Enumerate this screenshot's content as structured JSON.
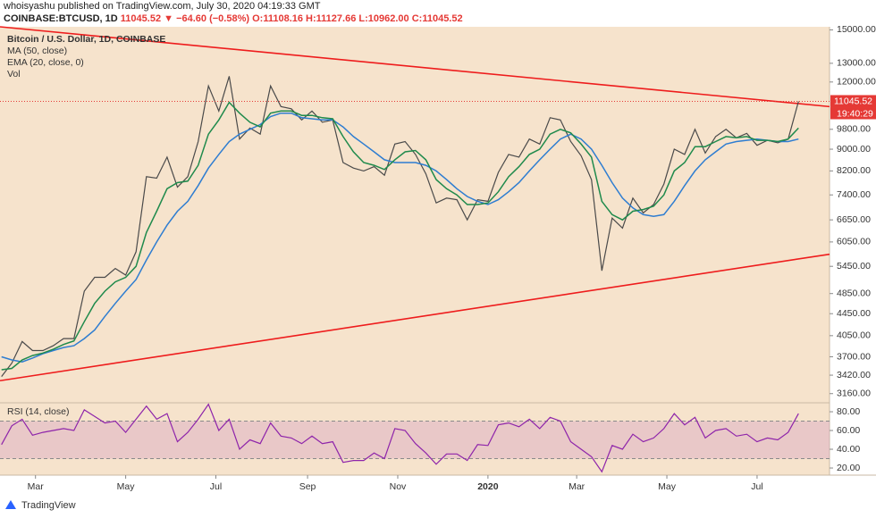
{
  "header": {
    "published": "whoisyashu published on TradingView.com, July 30, 2020 04:19:33 GMT",
    "symbol": "COINBASE:BTCUSD, 1D",
    "last": "11045.52",
    "change": "▼ −64.60 (−0.58%)",
    "open": "O:11108.16",
    "high": "H:11127.66",
    "low": "L:10962.00",
    "close": "C:11045.52"
  },
  "footer": {
    "brand": "TradingView"
  },
  "chart_data": [
    {
      "type": "line",
      "log": true,
      "xlim": [
        35,
        596
      ],
      "ylim": [
        3050,
        15200
      ],
      "grid": false,
      "volume_label": "Vol",
      "price_timer": "19:40:29",
      "yticks": [
        {
          "value": 15000,
          "label": "15000.00"
        },
        {
          "value": 13000,
          "label": "13000.00"
        },
        {
          "value": 12000,
          "label": "12000.00"
        },
        {
          "value": 9800,
          "label": "9800.00"
        },
        {
          "value": 9000,
          "label": "9000.00"
        },
        {
          "value": 8200,
          "label": "8200.00"
        },
        {
          "value": 7400,
          "label": "7400.00"
        },
        {
          "value": 6650,
          "label": "6650.00"
        },
        {
          "value": 6050,
          "label": "6050.00"
        },
        {
          "value": 5450,
          "label": "5450.00"
        },
        {
          "value": 4850,
          "label": "4850.00"
        },
        {
          "value": 4450,
          "label": "4450.00"
        },
        {
          "value": 4050,
          "label": "4050.00"
        },
        {
          "value": 3700,
          "label": "3700.00"
        },
        {
          "value": 3420,
          "label": "3420.00"
        },
        {
          "value": 3160,
          "label": "3160.00"
        }
      ],
      "x": [
        36,
        43,
        50,
        57,
        64,
        71,
        78,
        85,
        92,
        99,
        106,
        113,
        120,
        127,
        134,
        141,
        148,
        155,
        162,
        169,
        176,
        183,
        190,
        197,
        204,
        211,
        218,
        225,
        232,
        239,
        246,
        253,
        260,
        267,
        274,
        281,
        288,
        295,
        302,
        309,
        316,
        323,
        330,
        337,
        344,
        351,
        358,
        365,
        372,
        379,
        386,
        393,
        400,
        407,
        414,
        421,
        428,
        435,
        442,
        449,
        456,
        463,
        470,
        477,
        484,
        491,
        498,
        505,
        512,
        519,
        526,
        533,
        540,
        547,
        554,
        561,
        568,
        575
      ],
      "series": [
        {
          "name": "Bitcoin / U.S. Dollar, 1D, COINBASE",
          "color": "#4a4a4a",
          "values": [
            3400,
            3600,
            3950,
            3800,
            3800,
            3880,
            4000,
            4000,
            4900,
            5200,
            5200,
            5400,
            5250,
            5800,
            8000,
            7950,
            8700,
            7650,
            8000,
            9300,
            11800,
            10600,
            12300,
            9400,
            9850,
            9600,
            11800,
            10800,
            10700,
            10200,
            10600,
            10100,
            10200,
            8500,
            8300,
            8200,
            8350,
            8050,
            9200,
            9300,
            8800,
            8100,
            7150,
            7300,
            7250,
            6650,
            7250,
            7200,
            8150,
            8800,
            8700,
            9400,
            9200,
            10300,
            10200,
            9300,
            8750,
            7900,
            5350,
            6700,
            6420,
            7300,
            6850,
            7100,
            7750,
            9000,
            8800,
            9800,
            8850,
            9500,
            9800,
            9450,
            9630,
            9150,
            9350,
            9250,
            9390,
            11045.52
          ]
        },
        {
          "name": "MA (50, close)",
          "color": "#2e7dd1",
          "values": [
            3700,
            3650,
            3620,
            3680,
            3750,
            3800,
            3850,
            3880,
            4000,
            4150,
            4400,
            4650,
            4900,
            5150,
            5600,
            6050,
            6500,
            6900,
            7200,
            7700,
            8300,
            8800,
            9300,
            9600,
            9800,
            10000,
            10350,
            10500,
            10500,
            10300,
            10250,
            10200,
            10200,
            9900,
            9500,
            9200,
            8900,
            8600,
            8500,
            8500,
            8500,
            8400,
            8200,
            7900,
            7600,
            7350,
            7200,
            7100,
            7250,
            7500,
            7800,
            8200,
            8600,
            9000,
            9400,
            9600,
            9400,
            9000,
            8400,
            7800,
            7300,
            7000,
            6800,
            6750,
            6800,
            7200,
            7700,
            8200,
            8600,
            8900,
            9200,
            9300,
            9350,
            9400,
            9350,
            9300,
            9300,
            9400
          ]
        },
        {
          "name": "EMA (20, close, 0)",
          "color": "#1f8a4c",
          "values": [
            3500,
            3520,
            3650,
            3720,
            3760,
            3820,
            3900,
            3960,
            4300,
            4650,
            4900,
            5100,
            5200,
            5450,
            6300,
            6900,
            7600,
            7800,
            7850,
            8400,
            9600,
            10200,
            11000,
            10500,
            10100,
            9900,
            10500,
            10600,
            10600,
            10400,
            10400,
            10300,
            10250,
            9500,
            8900,
            8500,
            8400,
            8250,
            8600,
            8900,
            8950,
            8600,
            7900,
            7600,
            7400,
            7100,
            7100,
            7150,
            7500,
            8000,
            8350,
            8800,
            9000,
            9600,
            9800,
            9650,
            9200,
            8700,
            7200,
            6800,
            6650,
            6900,
            6950,
            7050,
            7400,
            8200,
            8500,
            9100,
            9100,
            9300,
            9500,
            9450,
            9500,
            9350,
            9350,
            9300,
            9400,
            9850
          ]
        }
      ],
      "trendlines": [
        {
          "color": "#ee1c1c",
          "x": [
            35,
            596
          ],
          "values": [
            15200,
            10800
          ]
        },
        {
          "color": "#ee1c1c",
          "x": [
            35,
            596
          ],
          "values": [
            3340,
            5740
          ]
        }
      ]
    },
    {
      "type": "line",
      "title": "RSI (14, close)",
      "xlim": [
        35,
        596
      ],
      "ylim": [
        12.4,
        88.6
      ],
      "band": [
        30,
        70
      ],
      "yticks": [
        {
          "value": 80,
          "label": "80.00"
        },
        {
          "value": 60,
          "label": "60.00"
        },
        {
          "value": 40,
          "label": "40.00"
        },
        {
          "value": 20,
          "label": "20.00"
        }
      ],
      "xticks": [
        {
          "value": 59,
          "label": "Mar"
        },
        {
          "value": 120,
          "label": "May"
        },
        {
          "value": 181,
          "label": "Jul"
        },
        {
          "value": 243,
          "label": "Sep"
        },
        {
          "value": 304,
          "label": "Nov"
        },
        {
          "value": 365,
          "label": "2020"
        },
        {
          "value": 425,
          "label": "Mar"
        },
        {
          "value": 486,
          "label": "May"
        },
        {
          "value": 547,
          "label": "Jul"
        }
      ],
      "x": [
        36,
        43,
        50,
        57,
        64,
        71,
        78,
        85,
        92,
        99,
        106,
        113,
        120,
        127,
        134,
        141,
        148,
        155,
        162,
        169,
        176,
        183,
        190,
        197,
        204,
        211,
        218,
        225,
        232,
        239,
        246,
        253,
        260,
        267,
        274,
        281,
        288,
        295,
        302,
        309,
        316,
        323,
        330,
        337,
        344,
        351,
        358,
        365,
        372,
        379,
        386,
        393,
        400,
        407,
        414,
        421,
        428,
        435,
        442,
        449,
        456,
        463,
        470,
        477,
        484,
        491,
        498,
        505,
        512,
        519,
        526,
        533,
        540,
        547,
        554,
        561,
        568,
        575
      ],
      "series": [
        {
          "name": "RSI",
          "color": "#8e24aa",
          "values": [
            45,
            65,
            72,
            55,
            58,
            60,
            62,
            60,
            82,
            75,
            68,
            70,
            58,
            72,
            86,
            72,
            78,
            48,
            58,
            72,
            88,
            60,
            72,
            40,
            50,
            46,
            68,
            54,
            52,
            46,
            54,
            46,
            48,
            26,
            28,
            28,
            36,
            30,
            62,
            60,
            46,
            36,
            24,
            35,
            35,
            28,
            45,
            44,
            66,
            68,
            64,
            72,
            62,
            74,
            70,
            48,
            40,
            32,
            16,
            44,
            40,
            56,
            48,
            52,
            62,
            78,
            66,
            74,
            52,
            60,
            62,
            54,
            56,
            48,
            52,
            50,
            58,
            78
          ]
        }
      ]
    }
  ]
}
